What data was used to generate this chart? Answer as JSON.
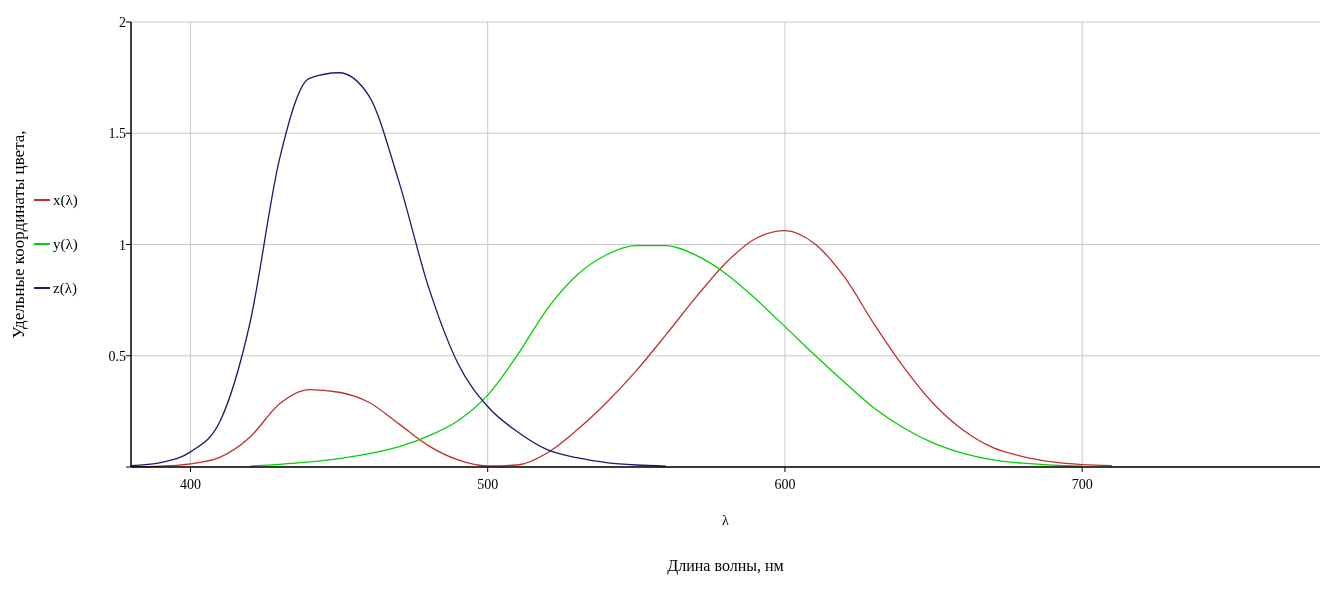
{
  "chart_data": {
    "type": "line",
    "ylabel": "Удельные координаты цвета,",
    "xlabel": "λ",
    "annotations": [
      "Длина волны, нм"
    ],
    "xlim": [
      380,
      780
    ],
    "ylim": [
      0,
      2
    ],
    "xticks": [
      400,
      500,
      600,
      700
    ],
    "yticks": [
      {
        "value": 0,
        "label": null
      },
      0.5,
      1,
      1.5,
      2
    ],
    "grid": true,
    "legend": "left",
    "marker": "none",
    "line_style": "solid",
    "series": [
      {
        "name": "x(λ)",
        "color": "#c03030",
        "x": [
          380,
          390,
          400,
          410,
          420,
          430,
          440,
          450,
          460,
          470,
          480,
          490,
          500,
          510,
          520,
          530,
          540,
          550,
          560,
          570,
          580,
          590,
          600,
          610,
          620,
          630,
          640,
          650,
          660,
          670,
          680,
          690,
          700,
          710
        ],
        "values": [
          0.001,
          0.004,
          0.014,
          0.044,
          0.134,
          0.284,
          0.348,
          0.336,
          0.291,
          0.195,
          0.096,
          0.032,
          0.005,
          0.009,
          0.063,
          0.166,
          0.29,
          0.433,
          0.595,
          0.762,
          0.916,
          1.026,
          1.062,
          1.003,
          0.854,
          0.642,
          0.448,
          0.284,
          0.165,
          0.087,
          0.047,
          0.023,
          0.011,
          0.006
        ]
      },
      {
        "name": "y(λ)",
        "color": "#00d000",
        "x": [
          420,
          430,
          440,
          450,
          460,
          470,
          480,
          490,
          500,
          510,
          520,
          530,
          540,
          550,
          560,
          570,
          580,
          590,
          600,
          610,
          620,
          630,
          640,
          650,
          660,
          670,
          680,
          690,
          700
        ],
        "values": [
          0.004,
          0.012,
          0.023,
          0.038,
          0.06,
          0.091,
          0.139,
          0.208,
          0.323,
          0.503,
          0.71,
          0.862,
          0.954,
          0.995,
          0.995,
          0.952,
          0.87,
          0.757,
          0.631,
          0.503,
          0.381,
          0.265,
          0.175,
          0.107,
          0.061,
          0.032,
          0.017,
          0.008,
          0.004
        ]
      },
      {
        "name": "z(λ)",
        "color": "#1a1a6e",
        "x": [
          380,
          390,
          400,
          410,
          420,
          430,
          440,
          450,
          460,
          470,
          480,
          490,
          500,
          510,
          520,
          530,
          540,
          550,
          560
        ],
        "values": [
          0.006,
          0.02,
          0.068,
          0.207,
          0.646,
          1.386,
          1.747,
          1.772,
          1.669,
          1.288,
          0.813,
          0.465,
          0.272,
          0.158,
          0.078,
          0.042,
          0.02,
          0.009,
          0.004
        ]
      }
    ]
  }
}
